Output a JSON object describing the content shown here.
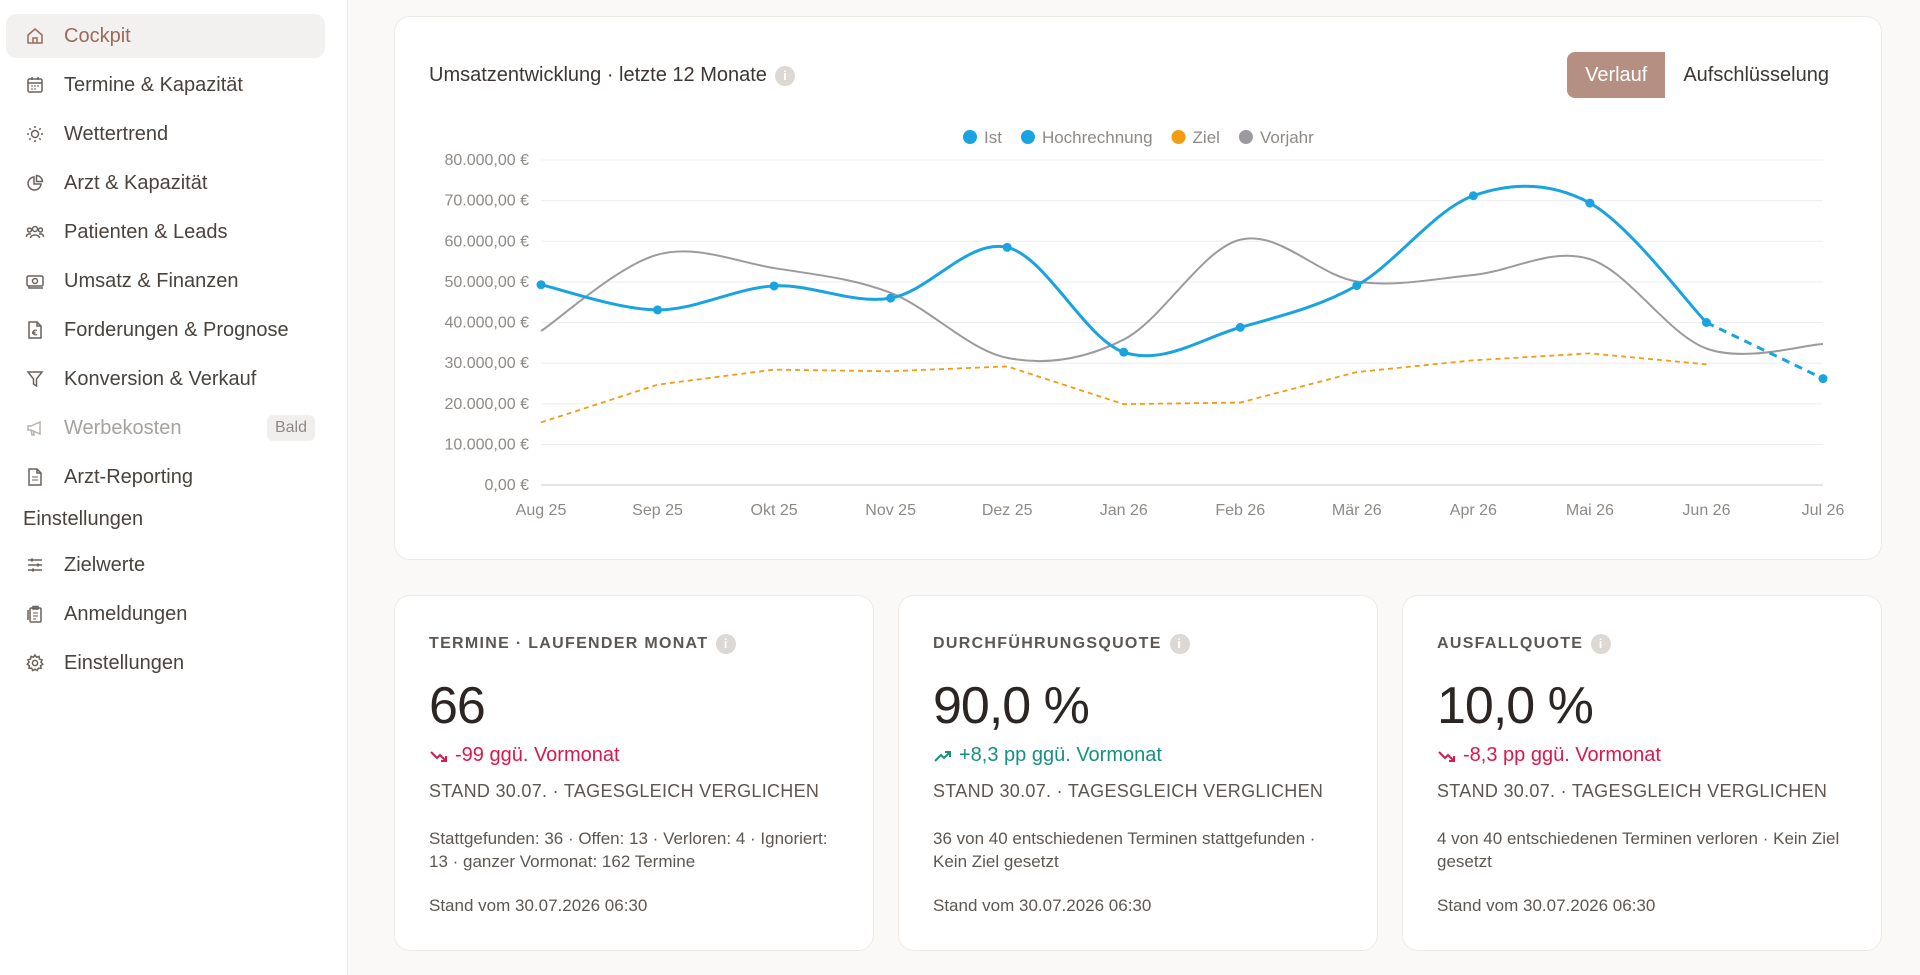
{
  "sidebar": {
    "items": [
      {
        "label": "Cockpit",
        "icon": "home-icon"
      },
      {
        "label": "Termine & Kapazität",
        "icon": "calendar-icon"
      },
      {
        "label": "Wettertrend",
        "icon": "sun-icon"
      },
      {
        "label": "Arzt & Kapazität",
        "icon": "pie-chart-icon"
      },
      {
        "label": "Patienten & Leads",
        "icon": "users-icon"
      },
      {
        "label": "Umsatz & Finanzen",
        "icon": "banknote-icon"
      },
      {
        "label": "Forderungen & Prognose",
        "icon": "euro-document-icon"
      },
      {
        "label": "Konversion & Verkauf",
        "icon": "filter-icon"
      },
      {
        "label": "Werbekosten",
        "icon": "megaphone-icon",
        "badge": "Bald"
      },
      {
        "label": "Arzt-Reporting",
        "icon": "document-icon"
      }
    ],
    "section_title": "Einstellungen",
    "settings_items": [
      {
        "label": "Zielwerte",
        "icon": "sliders-icon"
      },
      {
        "label": "Anmeldungen",
        "icon": "clipboard-icon"
      },
      {
        "label": "Einstellungen",
        "icon": "gear-icon"
      }
    ]
  },
  "chart_card": {
    "title": "Umsatzentwicklung · letzte 12 Monate",
    "toggle_active": "Verlauf",
    "toggle_inactive": "Aufschlüsselung"
  },
  "chart_data": {
    "type": "line",
    "categories": [
      "Aug 25",
      "Sep 25",
      "Okt 25",
      "Nov 25",
      "Dez 25",
      "Jan 26",
      "Feb 26",
      "Mär 26",
      "Apr 26",
      "Mai 26",
      "Jun 26",
      "Jul 26"
    ],
    "y_tick_labels": [
      "80.000,00 €",
      "70.000,00 €",
      "60.000,00 €",
      "50.000,00 €",
      "40.000,00 €",
      "30.000,00 €",
      "20.000,00 €",
      "10.000,00 €",
      "0,00 €"
    ],
    "ylim": [
      0,
      80000
    ],
    "grid": true,
    "legend_position": "top-center",
    "series": [
      {
        "name": "Ist",
        "color": "#1aa3e1",
        "style": "solid-markers",
        "values": [
          49300,
          43100,
          49000,
          46000,
          58500,
          32700,
          38800,
          49100,
          71200,
          69400,
          40000,
          null
        ]
      },
      {
        "name": "Hochrechnung",
        "color": "#1aa3e1",
        "style": "dashed",
        "values": [
          null,
          null,
          null,
          null,
          null,
          null,
          null,
          null,
          null,
          null,
          40000,
          26200
        ]
      },
      {
        "name": "Ziel",
        "color": "#f39c12",
        "style": "dashed",
        "values": [
          15400,
          24700,
          28400,
          28000,
          29200,
          19900,
          20300,
          27800,
          30700,
          32400,
          29700,
          null
        ]
      },
      {
        "name": "Vorjahr",
        "color": "#9c9a9e",
        "style": "solid",
        "values": [
          37900,
          56700,
          53400,
          47300,
          31300,
          35800,
          60400,
          50100,
          51700,
          55600,
          33600,
          34700
        ]
      }
    ]
  },
  "kpis": [
    {
      "label": "TERMINE · LAUFENDER MONAT",
      "value": "66",
      "delta": "-99 ggü. Vormonat",
      "trend": "down",
      "stand": "STAND 30.07. · TAGESGLEICH VERGLICHEN",
      "detail": "Stattgefunden: 36 · Offen: 13 · Verloren: 4 · Ignoriert: 13 · ganzer Vormonat: 162 Termine",
      "time": "Stand vom 30.07.2026 06:30"
    },
    {
      "label": "DURCHFÜHRUNGSQUOTE",
      "value": "90,0 %",
      "delta": "+8,3 pp ggü. Vormonat",
      "trend": "up",
      "stand": "STAND 30.07. · TAGESGLEICH VERGLICHEN",
      "detail": "36 von 40 entschiedenen Terminen stattgefunden · Kein Ziel gesetzt",
      "time": "Stand vom 30.07.2026 06:30"
    },
    {
      "label": "AUSFALLQUOTE",
      "value": "10,0 %",
      "delta": "-8,3 pp ggü. Vormonat",
      "trend": "down",
      "stand": "STAND 30.07. · TAGESGLEICH VERGLICHEN",
      "detail": "4 von 40 entschiedenen Terminen verloren · Kein Ziel gesetzt",
      "time": "Stand vom 30.07.2026 06:30"
    }
  ]
}
